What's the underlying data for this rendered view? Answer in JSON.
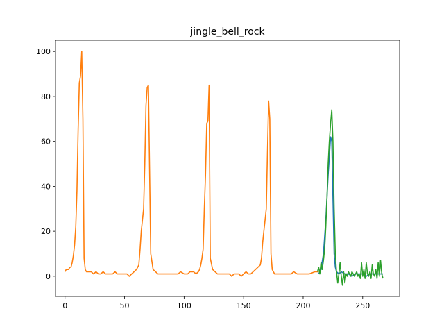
{
  "chart_data": {
    "type": "line",
    "title": "jingle_bell_rock",
    "xlabel": "",
    "ylabel": "",
    "xlim": [
      -8,
      281
    ],
    "ylim": [
      -9,
      105
    ],
    "xticks": [
      0,
      50,
      100,
      150,
      200,
      250
    ],
    "yticks": [
      0,
      20,
      40,
      60,
      80,
      100
    ],
    "grid": false,
    "series": [
      {
        "color": "#1f77b4",
        "x": [
          213,
          215,
          217,
          219,
          221,
          223,
          224,
          225,
          226,
          227,
          228,
          230,
          232,
          235,
          238,
          241,
          244,
          247,
          250,
          253,
          256,
          259,
          262,
          265,
          267
        ],
        "y": [
          1,
          3,
          10,
          25,
          45,
          62,
          60,
          35,
          10,
          4,
          2,
          1,
          2,
          1,
          1,
          0,
          1,
          1,
          1,
          0,
          1,
          1,
          1,
          1,
          1
        ]
      },
      {
        "color": "#ff7f0e",
        "x": [
          0,
          1,
          2,
          3,
          4,
          5,
          6,
          7,
          8,
          9,
          10,
          11,
          12,
          13,
          14,
          15,
          16,
          17,
          18,
          20,
          22,
          24,
          26,
          28,
          30,
          32,
          34,
          36,
          38,
          40,
          42,
          44,
          46,
          48,
          50,
          52,
          54,
          56,
          58,
          60,
          62,
          63,
          64,
          65,
          66,
          67,
          68,
          69,
          70,
          72,
          74,
          76,
          78,
          80,
          85,
          90,
          95,
          97,
          100,
          103,
          105,
          108,
          110,
          112,
          113,
          114,
          115,
          116,
          117,
          118,
          119,
          120,
          121,
          122,
          124,
          126,
          128,
          130,
          132,
          134,
          136,
          138,
          140,
          142,
          144,
          146,
          148,
          150,
          152,
          154,
          156,
          158,
          160,
          162,
          164,
          165,
          166,
          167,
          168,
          169,
          170,
          171,
          172,
          173,
          174,
          176,
          178,
          180,
          185,
          190,
          192,
          195,
          200,
          205,
          210,
          213
        ],
        "y": [
          2,
          3,
          3,
          3,
          4,
          4,
          6,
          9,
          14,
          22,
          38,
          65,
          86,
          89,
          100,
          70,
          8,
          3,
          2,
          2,
          2,
          1,
          2,
          1,
          1,
          2,
          1,
          1,
          1,
          1,
          2,
          1,
          1,
          1,
          1,
          1,
          0,
          1,
          2,
          3,
          5,
          12,
          20,
          25,
          30,
          50,
          76,
          84,
          85,
          10,
          3,
          2,
          1,
          1,
          1,
          1,
          1,
          2,
          1,
          1,
          2,
          2,
          1,
          2,
          3,
          5,
          8,
          12,
          30,
          45,
          68,
          69,
          85,
          8,
          3,
          2,
          1,
          1,
          1,
          1,
          1,
          1,
          0,
          1,
          1,
          1,
          0,
          1,
          2,
          1,
          1,
          2,
          3,
          4,
          5,
          8,
          15,
          20,
          25,
          30,
          55,
          78,
          70,
          10,
          3,
          1,
          1,
          1,
          1,
          1,
          2,
          1,
          1,
          1,
          2,
          2
        ]
      },
      {
        "color": "#2ca02c",
        "x": [
          212,
          213,
          214,
          215,
          216,
          217,
          218,
          219,
          220,
          221,
          222,
          223,
          224,
          225,
          226,
          227,
          228,
          229,
          230,
          231,
          232,
          233,
          234,
          235,
          236,
          237,
          238,
          239,
          240,
          241,
          242,
          243,
          244,
          245,
          246,
          247,
          248,
          249,
          250,
          251,
          252,
          253,
          254,
          255,
          256,
          257,
          258,
          259,
          260,
          261,
          262,
          263,
          264,
          265,
          266,
          267
        ],
        "y": [
          2,
          4,
          1,
          6,
          3,
          7,
          12,
          22,
          35,
          50,
          60,
          68,
          74,
          60,
          30,
          10,
          2,
          -3,
          1,
          6,
          0,
          -4,
          2,
          -3,
          1,
          0,
          2,
          1,
          0,
          2,
          1,
          0,
          1,
          2,
          0,
          1,
          -1,
          6,
          0,
          3,
          -1,
          6,
          1,
          0,
          2,
          -1,
          5,
          1,
          0,
          3,
          -1,
          6,
          0,
          7,
          1,
          -1
        ]
      }
    ]
  }
}
